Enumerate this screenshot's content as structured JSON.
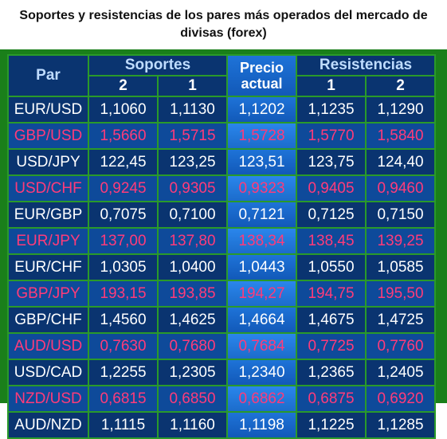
{
  "title": {
    "line1": "Soportes y resistencias de los pares más operados del mercado de",
    "line2": "divisas (forex)"
  },
  "headers": {
    "pair": "Par",
    "supports": "Soportes",
    "price_line1": "Precio",
    "price_line2": "actual",
    "resistances": "Resistencias",
    "s2": "2",
    "s1": "1",
    "r1": "1",
    "r2": "2"
  },
  "rows": [
    {
      "pair": "EUR/USD",
      "s2": "1,1060",
      "s1": "1,1130",
      "price": "1,1202",
      "r1": "1,1235",
      "r2": "1,1290"
    },
    {
      "pair": "GBP/USD",
      "s2": "1,5660",
      "s1": "1,5715",
      "price": "1,5728",
      "r1": "1,5770",
      "r2": "1,5840"
    },
    {
      "pair": "USD/JPY",
      "s2": "122,45",
      "s1": "123,25",
      "price": "123,51",
      "r1": "123,75",
      "r2": "124,40"
    },
    {
      "pair": "USD/CHF",
      "s2": "0,9245",
      "s1": "0,9305",
      "price": "0,9323",
      "r1": "0,9405",
      "r2": "0,9460"
    },
    {
      "pair": "EUR/GBP",
      "s2": "0,7075",
      "s1": "0,7100",
      "price": "0,7121",
      "r1": "0,7125",
      "r2": "0,7150"
    },
    {
      "pair": "EUR/JPY",
      "s2": "137,00",
      "s1": "137,80",
      "price": "138,34",
      "r1": "138,45",
      "r2": "139,25"
    },
    {
      "pair": "EUR/CHF",
      "s2": "1,0305",
      "s1": "1,0400",
      "price": "1,0443",
      "r1": "1,0550",
      "r2": "1,0585"
    },
    {
      "pair": "GBP/JPY",
      "s2": "193,15",
      "s1": "193,85",
      "price": "194,27",
      "r1": "194,75",
      "r2": "195,50"
    },
    {
      "pair": "GBP/CHF",
      "s2": "1,4560",
      "s1": "1,4625",
      "price": "1,4664",
      "r1": "1,4675",
      "r2": "1,4725"
    },
    {
      "pair": "AUD/USD",
      "s2": "0,7630",
      "s1": "0,7680",
      "price": "0,7684",
      "r1": "0,7725",
      "r2": "0,7760"
    },
    {
      "pair": "USD/CAD",
      "s2": "1,2255",
      "s1": "1,2305",
      "price": "1,2340",
      "r1": "1,2365",
      "r2": "1,2405"
    },
    {
      "pair": "NZD/USD",
      "s2": "0,6815",
      "s1": "0,6850",
      "price": "0,6862",
      "r1": "0,6875",
      "r2": "0,6920"
    },
    {
      "pair": "AUD/NZD",
      "s2": "1,1115",
      "s1": "1,1160",
      "price": "1,1198",
      "r1": "1,1225",
      "r2": "1,1285"
    }
  ],
  "colors": {
    "cell_dark": "#0a3470",
    "cell_alt": "#0e4a9a",
    "price_column": "#1e73d8",
    "alt_text": "#ff3b7a",
    "frame": "#1a7f1a"
  }
}
